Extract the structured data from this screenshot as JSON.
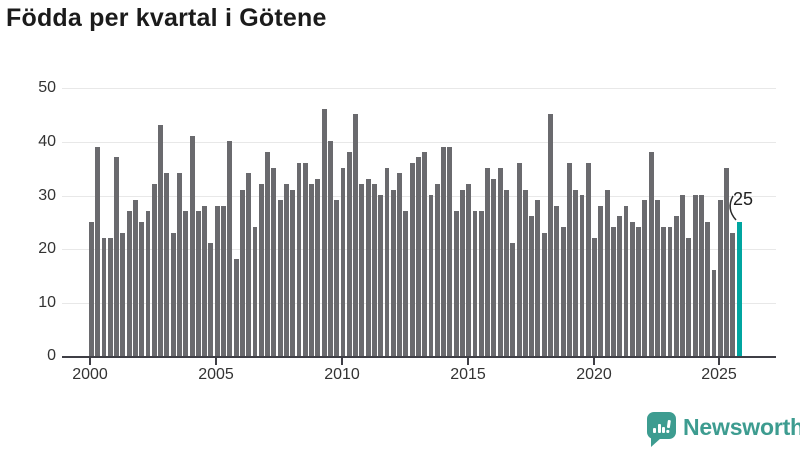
{
  "header": {
    "title": "Födda per kvartal i Götene"
  },
  "chart_data": {
    "type": "bar",
    "title": "Födda per kvartal i Götene",
    "frequency": "quarterly",
    "start_year": 2000,
    "end_year": 2025,
    "x_tick_labels": [
      "2000",
      "2005",
      "2010",
      "2015",
      "2020",
      "2025"
    ],
    "y_tick_labels": [
      "0",
      "10",
      "20",
      "30",
      "40",
      "50"
    ],
    "ylim": [
      0,
      50
    ],
    "grid": "horizontal",
    "legend": "none",
    "series": [
      {
        "name": "Födda per kvartal",
        "values": [
          25,
          39,
          22,
          22,
          37,
          23,
          27,
          29,
          25,
          27,
          32,
          43,
          34,
          23,
          34,
          27,
          41,
          27,
          28,
          21,
          28,
          28,
          40,
          18,
          31,
          34,
          24,
          32,
          38,
          35,
          29,
          32,
          31,
          36,
          36,
          32,
          33,
          46,
          40,
          29,
          35,
          38,
          45,
          32,
          33,
          32,
          30,
          35,
          31,
          34,
          27,
          36,
          37,
          38,
          30,
          32,
          39,
          39,
          27,
          31,
          32,
          27,
          27,
          35,
          33,
          35,
          31,
          21,
          36,
          31,
          26,
          29,
          23,
          45,
          28,
          24,
          36,
          31,
          30,
          36,
          22,
          28,
          31,
          24,
          26,
          28,
          25,
          24,
          29,
          38,
          29,
          24,
          24,
          26,
          30,
          22,
          30,
          30,
          25,
          16,
          29,
          35,
          23,
          25
        ]
      }
    ],
    "highlight": {
      "position": "last",
      "value": 25,
      "label": "25"
    },
    "colors": {
      "bar": "#6a6a6e",
      "highlight": "#00a5a0"
    }
  },
  "annotation": {
    "label": "25"
  },
  "footer": {
    "brand": "Newsworthy"
  },
  "colors": {
    "title_text": "#1b1b1b",
    "axis_text": "#333333",
    "axis_line": "#3f3f46",
    "gridline": "#e8e8e8",
    "bar": "#6a6a6e",
    "highlight": "#00a5a0",
    "brand": "#3d9c90",
    "background": "#ffffff"
  }
}
